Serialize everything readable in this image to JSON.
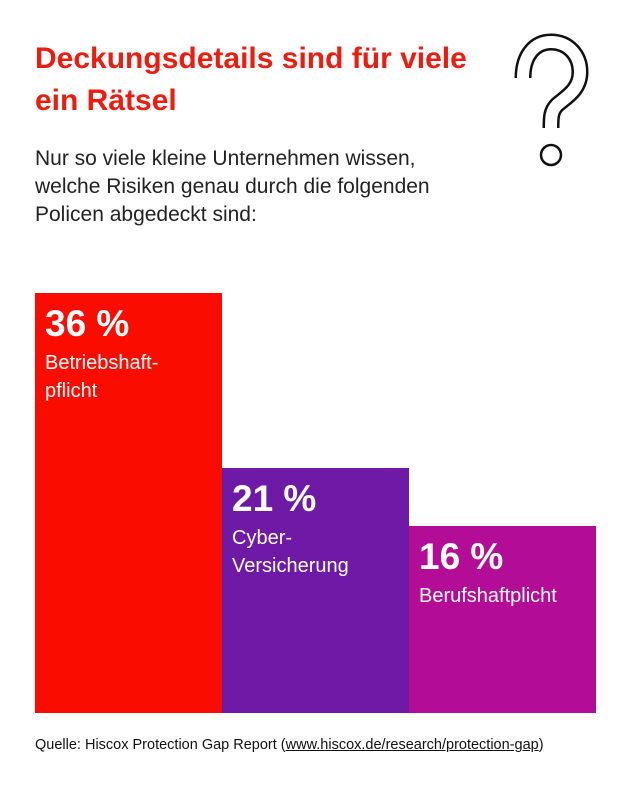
{
  "chart_data": {
    "type": "bar",
    "title": "Deckungsdetails sind für viele ein Rätsel",
    "subtitle": "Nur so viele kleine Unternehmen wissen, welche Risiken genau durch die folgenden Policen abgedeckt sind:",
    "categories": [
      "Betriebshaft-\npflicht",
      "Cyber-\nVersicherung",
      "Berufshaftplicht"
    ],
    "values": [
      36,
      21,
      16
    ],
    "value_labels": [
      "36 %",
      "21 %",
      "16 %"
    ],
    "colors": [
      "#fa0d00",
      "#6f1aa6",
      "#b30c97"
    ]
  },
  "source": {
    "prefix": "Quelle: Hiscox Protection Gap Report (",
    "link": "www.hiscox.de/research/protection-gap",
    "suffix": ")"
  }
}
